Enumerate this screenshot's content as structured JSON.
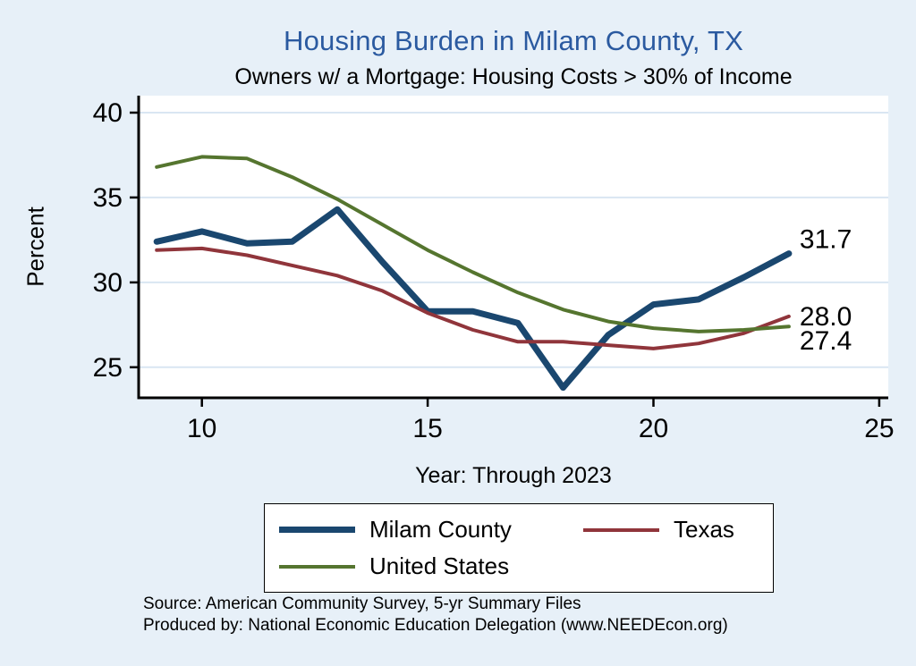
{
  "chart": {
    "title": "Housing Burden in Milam County, TX",
    "subtitle": "Owners w/ a Mortgage: Housing Costs > 30% of Income",
    "ylabel": "Percent",
    "xlabel": "Year: Through 2023"
  },
  "colors": {
    "title_color": "#2b5aa0",
    "background": "#e7f0f8",
    "plot_background": "#ffffff",
    "gridline": "#d9e6f2",
    "axis": "#000000"
  },
  "source": {
    "line1": "Source: American Community Survey, 5-yr Summary Files",
    "line2": "Produced by: National Economic Education Delegation (www.NEEDEcon.org)"
  },
  "chart_data": {
    "type": "line",
    "title": "Housing Burden in Milam County, TX",
    "subtitle": "Owners w/ a Mortgage: Housing Costs > 30% of Income",
    "xlabel": "Year: Through 2023",
    "ylabel": "Percent",
    "x": [
      9,
      10,
      11,
      12,
      13,
      14,
      15,
      16,
      17,
      18,
      19,
      20,
      21,
      22,
      23
    ],
    "xlim": [
      8.6,
      25.2
    ],
    "ylim": [
      23.2,
      41.0
    ],
    "xticks": [
      10,
      15,
      20,
      25
    ],
    "yticks": [
      25,
      30,
      35,
      40
    ],
    "grid": "horizontal",
    "legend_position": "bottom",
    "series": [
      {
        "name": "Milam County",
        "color": "#1a476f",
        "width": 7,
        "values": [
          32.4,
          33.0,
          32.3,
          32.4,
          34.3,
          31.2,
          28.3,
          28.3,
          27.6,
          23.8,
          26.9,
          28.7,
          29.0,
          30.3,
          31.7
        ],
        "end_label": "31.7",
        "label_dy": -16
      },
      {
        "name": "Texas",
        "color": "#90353b",
        "width": 4,
        "values": [
          31.9,
          32.0,
          31.6,
          31.0,
          30.4,
          29.5,
          28.2,
          27.2,
          26.5,
          26.5,
          26.3,
          26.1,
          26.4,
          27.0,
          28.0
        ],
        "end_label": "28.0",
        "label_dy": 0
      },
      {
        "name": "United States",
        "color": "#55752f",
        "width": 4,
        "values": [
          36.8,
          37.4,
          37.3,
          36.2,
          34.9,
          33.4,
          31.9,
          30.6,
          29.4,
          28.4,
          27.7,
          27.3,
          27.1,
          27.2,
          27.4
        ],
        "end_label": "27.4",
        "label_dy": 16
      }
    ]
  }
}
